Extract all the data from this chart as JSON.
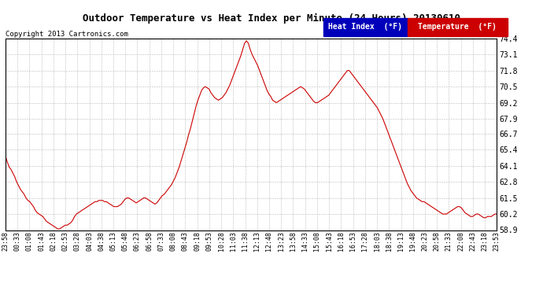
{
  "title": "Outdoor Temperature vs Heat Index per Minute (24 Hours) 20130610",
  "copyright": "Copyright 2013 Cartronics.com",
  "legend_heat_label": "Heat Index  (°F)",
  "legend_temp_label": "Temperature  (°F)",
  "legend_heat_color": "#0000bb",
  "legend_temp_color": "#cc0000",
  "line_color": "#cc0000",
  "background_color": "#ffffff",
  "grid_color": "#aaaaaa",
  "ylim": [
    58.9,
    74.4
  ],
  "yticks": [
    58.9,
    60.2,
    61.5,
    62.8,
    64.1,
    65.4,
    66.7,
    67.9,
    69.2,
    70.5,
    71.8,
    73.1,
    74.4
  ],
  "xtick_labels": [
    "23:58",
    "00:33",
    "01:08",
    "01:43",
    "02:18",
    "02:53",
    "03:28",
    "04:03",
    "04:38",
    "05:13",
    "05:48",
    "06:23",
    "06:58",
    "07:33",
    "08:08",
    "08:43",
    "09:18",
    "09:53",
    "10:28",
    "11:03",
    "11:38",
    "12:13",
    "12:48",
    "13:23",
    "13:58",
    "14:33",
    "15:08",
    "15:43",
    "16:18",
    "16:53",
    "17:28",
    "18:03",
    "18:38",
    "19:13",
    "19:48",
    "20:23",
    "20:58",
    "21:33",
    "22:08",
    "22:43",
    "23:18",
    "23:53"
  ],
  "temp_data": [
    64.9,
    64.4,
    64.0,
    63.8,
    63.5,
    63.2,
    62.8,
    62.5,
    62.2,
    62.0,
    61.8,
    61.5,
    61.3,
    61.2,
    61.0,
    60.8,
    60.5,
    60.3,
    60.2,
    60.1,
    60.0,
    59.8,
    59.6,
    59.5,
    59.4,
    59.3,
    59.2,
    59.1,
    59.0,
    59.0,
    59.1,
    59.2,
    59.3,
    59.3,
    59.4,
    59.5,
    59.7,
    60.0,
    60.2,
    60.3,
    60.4,
    60.5,
    60.6,
    60.7,
    60.8,
    60.9,
    61.0,
    61.1,
    61.2,
    61.2,
    61.3,
    61.3,
    61.3,
    61.2,
    61.2,
    61.1,
    61.0,
    60.9,
    60.8,
    60.8,
    60.8,
    60.9,
    61.0,
    61.2,
    61.4,
    61.5,
    61.5,
    61.4,
    61.3,
    61.2,
    61.1,
    61.2,
    61.3,
    61.4,
    61.5,
    61.5,
    61.4,
    61.3,
    61.2,
    61.1,
    61.0,
    61.1,
    61.3,
    61.5,
    61.7,
    61.8,
    62.0,
    62.2,
    62.4,
    62.6,
    62.9,
    63.2,
    63.6,
    64.0,
    64.5,
    65.0,
    65.5,
    66.0,
    66.6,
    67.1,
    67.7,
    68.3,
    68.9,
    69.4,
    69.8,
    70.2,
    70.4,
    70.5,
    70.4,
    70.3,
    70.0,
    69.8,
    69.6,
    69.5,
    69.4,
    69.5,
    69.6,
    69.8,
    70.0,
    70.3,
    70.6,
    71.0,
    71.4,
    71.8,
    72.2,
    72.6,
    73.0,
    73.5,
    74.0,
    74.2,
    74.0,
    73.5,
    73.1,
    72.8,
    72.5,
    72.2,
    71.8,
    71.4,
    71.0,
    70.6,
    70.2,
    69.9,
    69.7,
    69.4,
    69.3,
    69.2,
    69.3,
    69.4,
    69.5,
    69.6,
    69.7,
    69.8,
    69.9,
    70.0,
    70.1,
    70.2,
    70.3,
    70.4,
    70.5,
    70.4,
    70.3,
    70.1,
    69.9,
    69.7,
    69.5,
    69.3,
    69.2,
    69.2,
    69.3,
    69.4,
    69.5,
    69.6,
    69.7,
    69.8,
    70.0,
    70.2,
    70.4,
    70.6,
    70.8,
    71.0,
    71.2,
    71.4,
    71.6,
    71.8,
    71.8,
    71.6,
    71.4,
    71.2,
    71.0,
    70.8,
    70.6,
    70.4,
    70.2,
    70.0,
    69.8,
    69.6,
    69.4,
    69.2,
    69.0,
    68.8,
    68.5,
    68.2,
    67.9,
    67.5,
    67.1,
    66.7,
    66.3,
    65.9,
    65.5,
    65.1,
    64.7,
    64.3,
    63.9,
    63.5,
    63.1,
    62.7,
    62.4,
    62.1,
    61.9,
    61.7,
    61.5,
    61.4,
    61.3,
    61.2,
    61.2,
    61.1,
    61.0,
    60.9,
    60.8,
    60.7,
    60.6,
    60.5,
    60.4,
    60.3,
    60.2,
    60.2,
    60.2,
    60.3,
    60.4,
    60.5,
    60.6,
    60.7,
    60.8,
    60.8,
    60.7,
    60.5,
    60.3,
    60.2,
    60.1,
    60.0,
    60.0,
    60.1,
    60.2,
    60.2,
    60.1,
    60.0,
    59.9,
    59.9,
    60.0,
    60.0,
    60.0,
    60.1,
    60.2,
    60.2
  ],
  "title_fontsize": 9,
  "copyright_fontsize": 6.5,
  "ytick_fontsize": 7,
  "xtick_fontsize": 6,
  "legend_fontsize": 7
}
